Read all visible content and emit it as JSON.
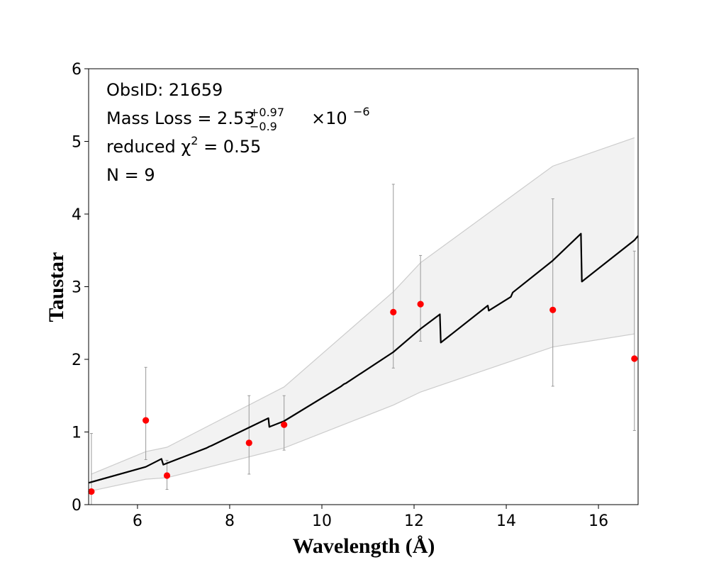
{
  "chart_data": {
    "type": "scatter",
    "title": "",
    "xlabel": "Wavelength (Å)",
    "ylabel": "Taustar",
    "xlim": [
      4.94,
      16.86
    ],
    "ylim": [
      0,
      6
    ],
    "xticks": [
      6,
      8,
      10,
      12,
      14,
      16
    ],
    "yticks": [
      0,
      1,
      2,
      3,
      4,
      5,
      6
    ],
    "grid": false,
    "colors": {
      "points": "#ff0000",
      "model_line": "#000000",
      "band_fill": "#f2f2f2",
      "band_edge": "#cccccc",
      "errorbars": "#999999"
    },
    "annotations": {
      "obsid": "ObsID: 21659",
      "mass_loss_prefix": "Mass Loss = 2.53",
      "mass_loss_plus": "+0.97",
      "mass_loss_minus": "−0.9",
      "mass_loss_suffix": "×10",
      "mass_loss_exp": "−6",
      "chi_prefix": "reduced χ",
      "chi_sup": "2",
      "chi_suffix": " = 0.55",
      "n": "N = 9"
    },
    "observations": {
      "x": [
        5.0,
        6.18,
        6.64,
        8.42,
        9.18,
        11.55,
        12.14,
        15.01,
        16.78
      ],
      "y": [
        0.18,
        1.16,
        0.4,
        0.85,
        1.1,
        2.65,
        2.76,
        2.68,
        2.01
      ],
      "err_low": [
        0.18,
        0.54,
        0.19,
        0.43,
        0.35,
        0.77,
        0.51,
        1.05,
        0.99
      ],
      "err_high": [
        0.8,
        0.73,
        0.21,
        0.65,
        0.4,
        1.76,
        0.67,
        1.53,
        1.48
      ]
    },
    "model": {
      "x": [
        4.94,
        6.18,
        6.52,
        6.56,
        7.5,
        7.56,
        7.6,
        8.84,
        8.86,
        9.18,
        10.42,
        10.48,
        10.52,
        11.55,
        12.14,
        12.56,
        12.58,
        13.6,
        13.62,
        14.1,
        14.14,
        15.01,
        15.62,
        15.64,
        16.78,
        16.86
      ],
      "y": [
        0.3,
        0.52,
        0.63,
        0.55,
        0.78,
        0.8,
        0.81,
        1.19,
        1.07,
        1.15,
        1.63,
        1.66,
        1.67,
        2.1,
        2.42,
        2.62,
        2.23,
        2.74,
        2.67,
        2.86,
        2.92,
        3.36,
        3.73,
        3.07,
        3.64,
        3.7
      ]
    },
    "band": {
      "x": [
        5.0,
        6.18,
        6.64,
        9.18,
        11.55,
        12.14,
        15.01,
        16.78
      ],
      "upper": [
        0.42,
        0.73,
        0.79,
        1.62,
        2.93,
        3.33,
        4.66,
        5.05
      ],
      "lower": [
        0.19,
        0.35,
        0.37,
        0.78,
        1.37,
        1.55,
        2.17,
        2.35
      ]
    }
  }
}
